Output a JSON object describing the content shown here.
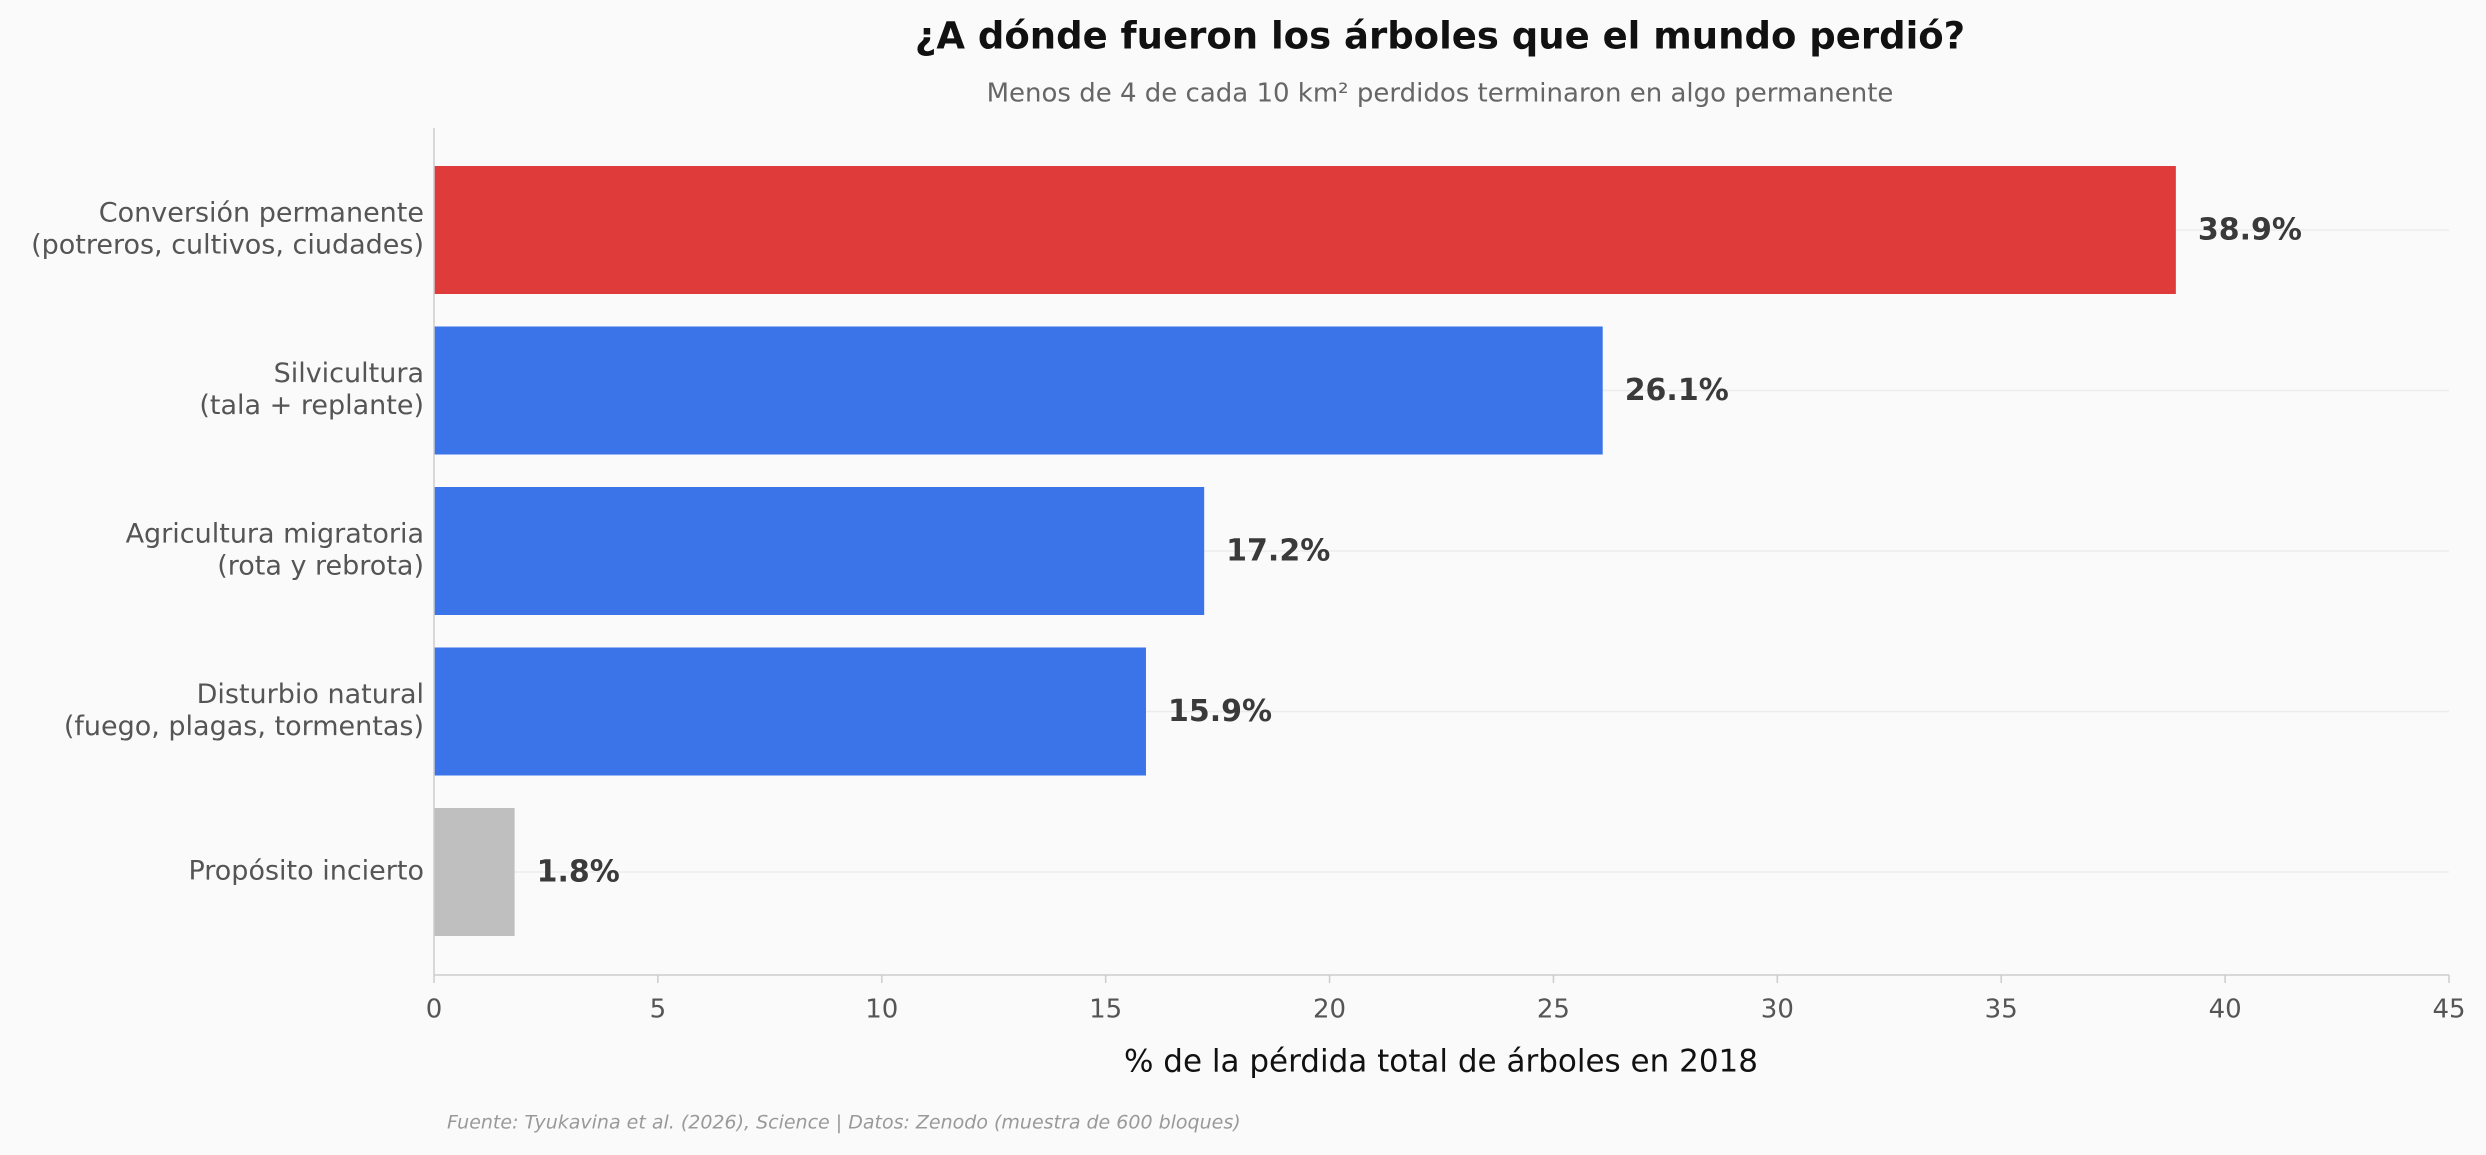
{
  "chart_data": {
    "type": "bar",
    "orientation": "horizontal",
    "title": "¿A dónde fueron los árboles que el mundo perdió?",
    "subtitle": "Menos de 4 de cada 10 km² perdidos terminaron en algo permanente",
    "xlabel": "% de la pérdida total de árboles en 2018",
    "ylabel": "",
    "xlim": [
      0,
      45
    ],
    "xticks": [
      "0",
      "5",
      "10",
      "15",
      "20",
      "25",
      "30",
      "35",
      "40",
      "45"
    ],
    "grid": "vertical-light",
    "categories": [
      [
        "Conversión permanente",
        "(potreros, cultivos, ciudades)"
      ],
      [
        "Silvicultura",
        "(tala + replante)"
      ],
      [
        "Agricultura migratoria",
        "(rota y rebrota)"
      ],
      [
        "Disturbio natural",
        "(fuego, plagas, tormentas)"
      ],
      [
        "Propósito incierto"
      ]
    ],
    "values": [
      38.9,
      26.1,
      17.2,
      15.9,
      1.8
    ],
    "value_labels": [
      "38.9%",
      "26.1%",
      "17.2%",
      "15.9%",
      "1.8%"
    ],
    "bar_colors": [
      "#e03b3b",
      "#3b73e9",
      "#3b73e9",
      "#3b73e9",
      "#bfbfbf"
    ],
    "source": "Fuente: Tyukavina et al. (2026), Science | Datos: Zenodo (muestra de 600 bloques)"
  },
  "colors": {
    "background": "#fafafa",
    "text_dark": "#111111",
    "text_muted": "#666666",
    "axis": "#cccccc",
    "grid": "#ececec",
    "label_text": "#555555",
    "value_text": "#3a3a3a",
    "source_text": "#999999"
  }
}
